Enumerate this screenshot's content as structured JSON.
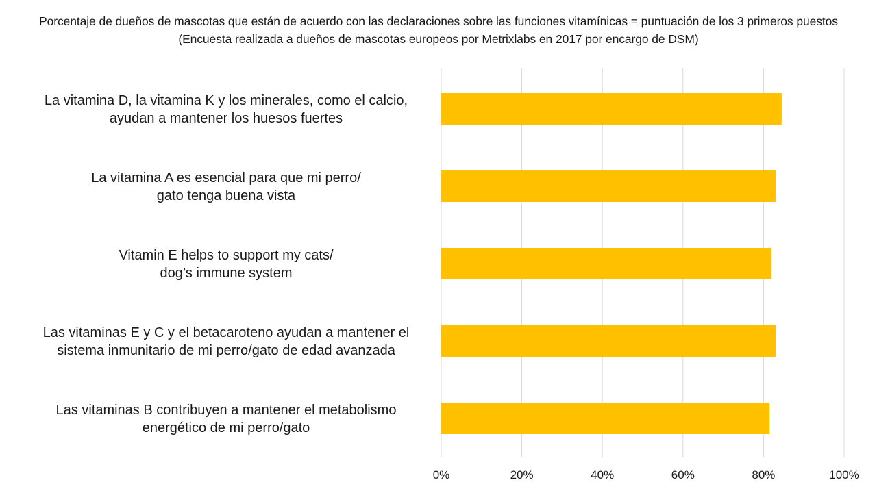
{
  "chart_data": {
    "type": "bar",
    "orientation": "horizontal",
    "title": "Porcentaje de dueños de mascotas que están de acuerdo con las declaraciones sobre las funciones vitamínicas = puntuación de los 3 primeros puestos",
    "subtitle": "(Encuesta realizada a dueños de mascotas europeos por Metrixlabs en 2017 por encargo de DSM)",
    "categories": [
      [
        "La vitamina D, la vitamina K y los minerales, como el calcio,",
        "ayudan a mantener los huesos fuertes"
      ],
      [
        "La vitamina A es esencial para que mi perro/",
        "gato tenga buena vista"
      ],
      [
        "Vitamin E helps to support my cats/",
        "dog’s immune system"
      ],
      [
        "Las vitaminas E y C y el betacaroteno ayudan a mantener el",
        "sistema inmunitario de mi perro/gato de edad avanzada"
      ],
      [
        "Las vitaminas B contribuyen a mantener el metabolismo",
        "energético de mi perro/gato"
      ]
    ],
    "values": [
      0.845,
      0.83,
      0.82,
      0.83,
      0.815
    ],
    "xlim": [
      0,
      1
    ],
    "x_ticks": [
      "0%",
      "20%",
      "40%",
      "60%",
      "80%",
      "100%"
    ],
    "grid": "vertical",
    "legend": "none",
    "colors": {
      "bar": "#FFC000",
      "grid": "#D9D9D9",
      "text": "#1A1A1A"
    }
  }
}
